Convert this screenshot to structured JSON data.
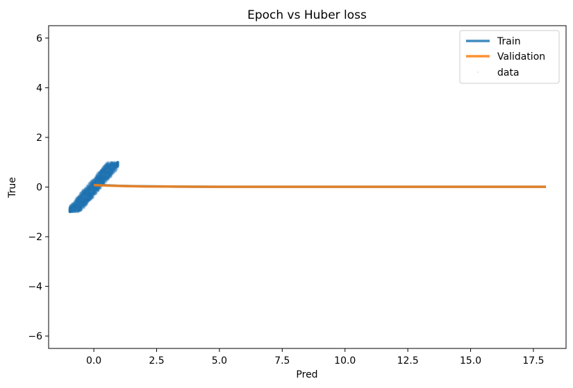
{
  "chart_data": {
    "type": "line",
    "title": "Epoch vs Huber loss",
    "xlabel": "Pred",
    "ylabel": "True",
    "xlim": [
      -1.8,
      18.8
    ],
    "ylim": [
      -6.5,
      6.5
    ],
    "xticks": [
      0.0,
      2.5,
      5.0,
      7.5,
      10.0,
      12.5,
      15.0,
      17.5
    ],
    "xtick_labels": [
      "0.0",
      "2.5",
      "5.0",
      "7.5",
      "10.0",
      "12.5",
      "15.0",
      "17.5"
    ],
    "yticks": [
      -6,
      -4,
      -2,
      0,
      2,
      4,
      6
    ],
    "ytick_labels": [
      "−6",
      "−4",
      "−2",
      "0",
      "2",
      "4",
      "6"
    ],
    "grid": false,
    "legend": "top-right",
    "series": [
      {
        "name": "Train",
        "kind": "line",
        "color": "#1f77b4",
        "x": [
          0,
          0.5,
          1,
          1.5,
          2,
          3,
          4,
          5,
          6,
          8,
          10,
          12,
          14,
          16,
          18
        ],
        "y": [
          0.09,
          0.07,
          0.05,
          0.04,
          0.03,
          0.02,
          0.015,
          0.012,
          0.01,
          0.01,
          0.01,
          0.01,
          0.01,
          0.01,
          0.01
        ]
      },
      {
        "name": "Validation",
        "kind": "line",
        "color": "#ff7f0e",
        "x": [
          0,
          0.5,
          1,
          1.5,
          2,
          3,
          4,
          5,
          6,
          8,
          10,
          12,
          14,
          16,
          18
        ],
        "y": [
          0.08,
          0.06,
          0.045,
          0.035,
          0.025,
          0.02,
          0.015,
          0.012,
          0.01,
          0.01,
          0.01,
          0.01,
          0.01,
          0.01,
          0.01
        ]
      },
      {
        "name": "data",
        "kind": "scatter",
        "color": "#1f77b4",
        "description_points": "dense cloud of points from (-0.95,-1) to (0.95,1) along y≈x",
        "x_range": [
          -0.95,
          0.95
        ],
        "y_range": [
          -1.0,
          1.0
        ]
      }
    ]
  }
}
